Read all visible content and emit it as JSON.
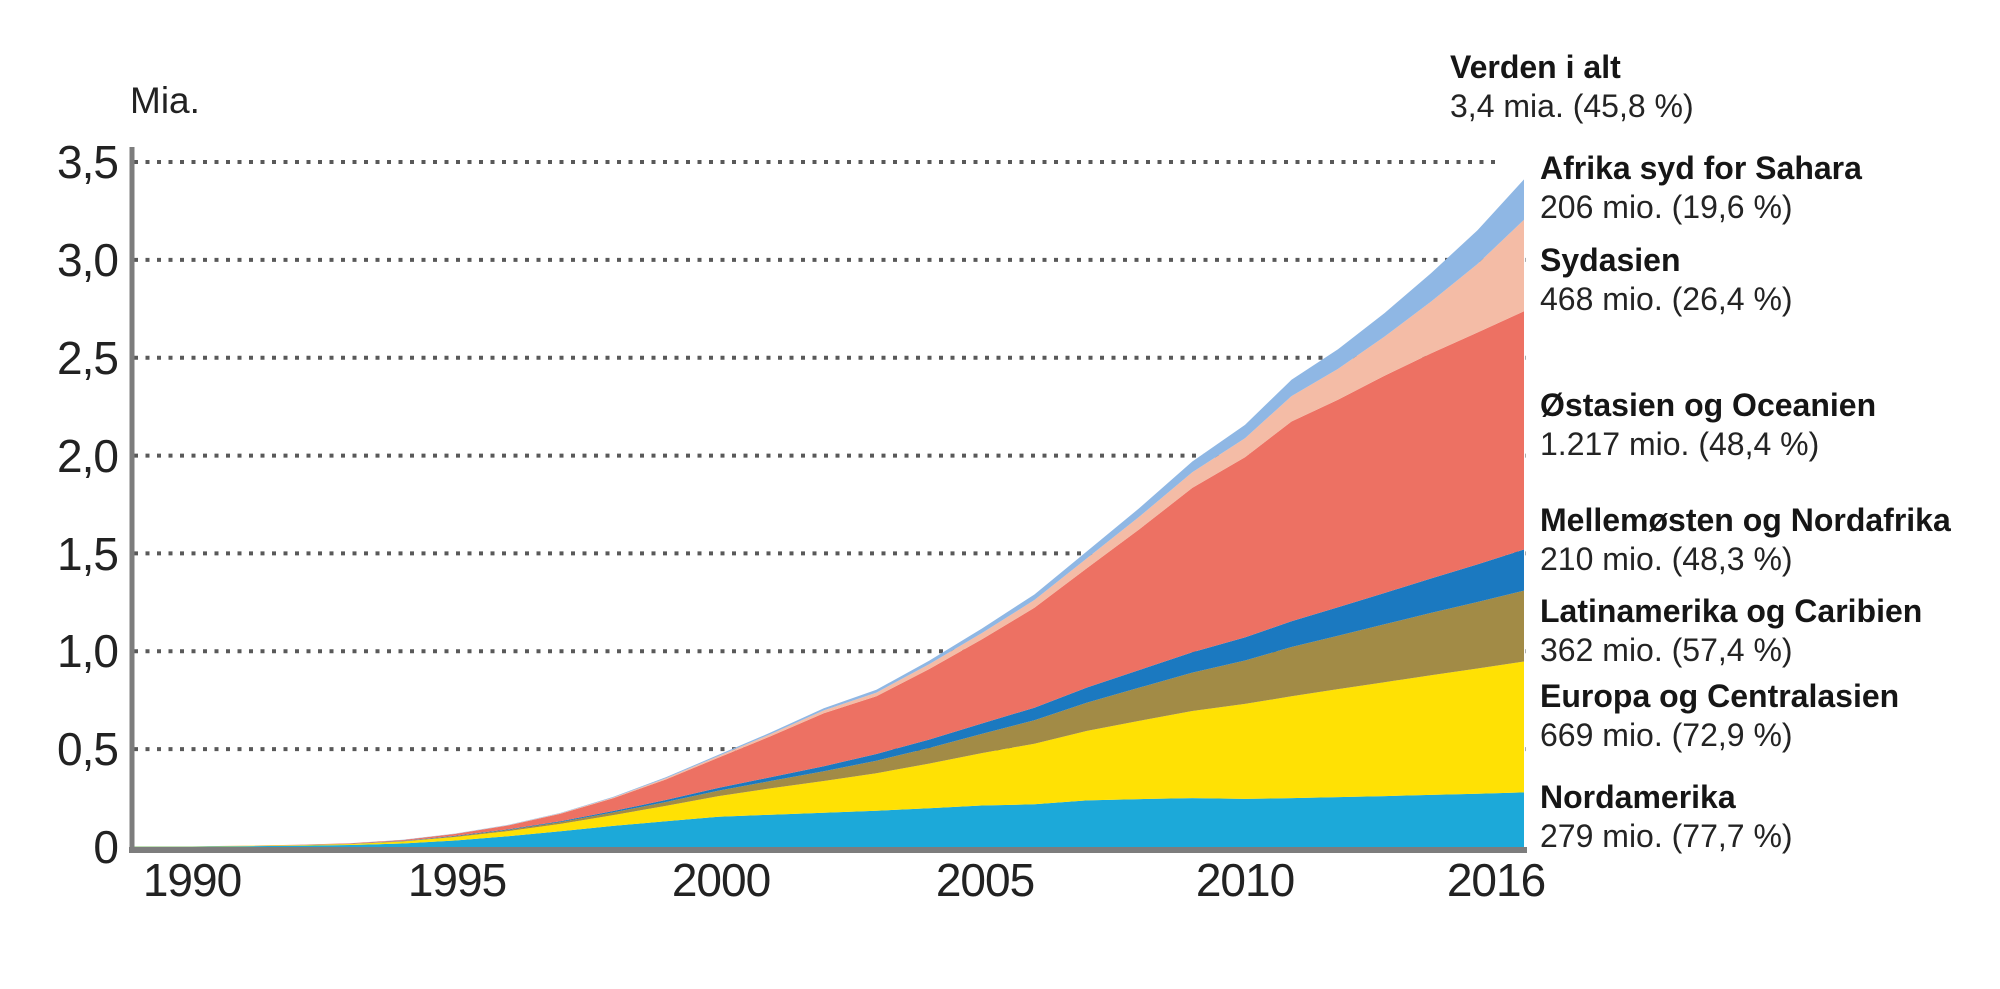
{
  "chart_data": {
    "type": "area",
    "stacked": true,
    "ylabel": "Mia.",
    "xlabel": "",
    "ylim": [
      0,
      3.5
    ],
    "grid": "horizontal-dotted",
    "grid_color": "#595959",
    "axis_color": "#7d7d7d",
    "x_years": [
      1990,
      1991,
      1992,
      1993,
      1994,
      1995,
      1996,
      1997,
      1998,
      1999,
      2000,
      2001,
      2002,
      2003,
      2004,
      2005,
      2006,
      2007,
      2008,
      2009,
      2010,
      2011,
      2012,
      2013,
      2014,
      2015,
      2016
    ],
    "xticks": [
      {
        "year": 1990,
        "label": "1990"
      },
      {
        "year": 1995,
        "label": "1995"
      },
      {
        "year": 2000,
        "label": "2000"
      },
      {
        "year": 2005,
        "label": "2005"
      },
      {
        "year": 2010,
        "label": "2010"
      },
      {
        "year": 2016,
        "label": "2016"
      }
    ],
    "yticks": [
      {
        "value": 3.5,
        "label": "3,5"
      },
      {
        "value": 3.0,
        "label": "3,0"
      },
      {
        "value": 2.5,
        "label": "2,5"
      },
      {
        "value": 2.0,
        "label": "2,0"
      },
      {
        "value": 1.5,
        "label": "1,5"
      },
      {
        "value": 1.0,
        "label": "1,0"
      },
      {
        "value": 0.5,
        "label": "0,5"
      },
      {
        "value": 0,
        "label": "0"
      }
    ],
    "series": [
      {
        "name": "Nordamerika",
        "color": "#1CA9D9",
        "values": [
          0.002,
          0.004,
          0.006,
          0.01,
          0.018,
          0.033,
          0.055,
          0.08,
          0.108,
          0.132,
          0.155,
          0.165,
          0.175,
          0.185,
          0.198,
          0.212,
          0.218,
          0.238,
          0.245,
          0.25,
          0.246,
          0.25,
          0.255,
          0.26,
          0.266,
          0.272,
          0.279
        ]
      },
      {
        "name": "Europa og Centralasien",
        "color": "#FFE104",
        "values": [
          0.001,
          0.002,
          0.003,
          0.005,
          0.01,
          0.018,
          0.026,
          0.038,
          0.055,
          0.078,
          0.105,
          0.135,
          0.162,
          0.192,
          0.228,
          0.268,
          0.31,
          0.355,
          0.4,
          0.445,
          0.485,
          0.52,
          0.552,
          0.582,
          0.612,
          0.64,
          0.669
        ]
      },
      {
        "name": "Latinamerika og Caribien",
        "color": "#A28B46",
        "values": [
          0,
          0,
          0.001,
          0.001,
          0.002,
          0.004,
          0.006,
          0.009,
          0.014,
          0.02,
          0.028,
          0.038,
          0.05,
          0.064,
          0.08,
          0.098,
          0.12,
          0.145,
          0.17,
          0.196,
          0.222,
          0.252,
          0.272,
          0.296,
          0.318,
          0.34,
          0.362
        ]
      },
      {
        "name": "Mellemøsten og Nordafrika",
        "color": "#1B79C0",
        "values": [
          0,
          0,
          0,
          0.001,
          0.001,
          0.002,
          0.003,
          0.005,
          0.007,
          0.01,
          0.014,
          0.019,
          0.026,
          0.034,
          0.043,
          0.053,
          0.064,
          0.077,
          0.09,
          0.104,
          0.118,
          0.132,
          0.146,
          0.16,
          0.176,
          0.192,
          0.21
        ]
      },
      {
        "name": "Østasien og Oceanien",
        "color": "#ED7163",
        "values": [
          0,
          0.001,
          0.001,
          0.002,
          0.005,
          0.01,
          0.02,
          0.038,
          0.065,
          0.105,
          0.155,
          0.21,
          0.27,
          0.295,
          0.36,
          0.43,
          0.51,
          0.61,
          0.72,
          0.84,
          0.92,
          1.02,
          1.06,
          1.11,
          1.15,
          1.185,
          1.217
        ]
      },
      {
        "name": "Sydasien",
        "color": "#F4BCA6",
        "values": [
          0,
          0,
          0,
          0,
          0,
          0.001,
          0.001,
          0.002,
          0.004,
          0.006,
          0.008,
          0.011,
          0.015,
          0.019,
          0.025,
          0.032,
          0.04,
          0.05,
          0.064,
          0.08,
          0.098,
          0.13,
          0.158,
          0.2,
          0.265,
          0.35,
          0.468
        ]
      },
      {
        "name": "Afrika syd for Sahara",
        "color": "#8FB7E4",
        "values": [
          0,
          0,
          0,
          0,
          0.001,
          0.001,
          0.002,
          0.002,
          0.003,
          0.005,
          0.006,
          0.008,
          0.011,
          0.014,
          0.018,
          0.023,
          0.028,
          0.036,
          0.044,
          0.055,
          0.068,
          0.083,
          0.1,
          0.12,
          0.145,
          0.172,
          0.206
        ]
      }
    ],
    "world_total_2016_mia": 3.4
  },
  "legend": {
    "total": {
      "name": "Verden i alt",
      "value": "3,4 mia. (45,8 %)"
    },
    "items": [
      {
        "name": "Afrika syd for Sahara",
        "value": "206 mio. (19,6 %)"
      },
      {
        "name": "Sydasien",
        "value": "468 mio. (26,4 %)"
      },
      {
        "name": "Østasien og Oceanien",
        "value": "1.217 mio. (48,4 %)"
      },
      {
        "name": "Mellemøsten og Nordafrika",
        "value": "210 mio. (48,3 %)"
      },
      {
        "name": "Latinamerika og Caribien",
        "value": "362 mio. (57,4 %)"
      },
      {
        "name": "Europa og Centralasien",
        "value": "669 mio. (72,9 %)"
      },
      {
        "name": "Nordamerika",
        "value": "279 mio. (77,7 %)"
      }
    ]
  }
}
